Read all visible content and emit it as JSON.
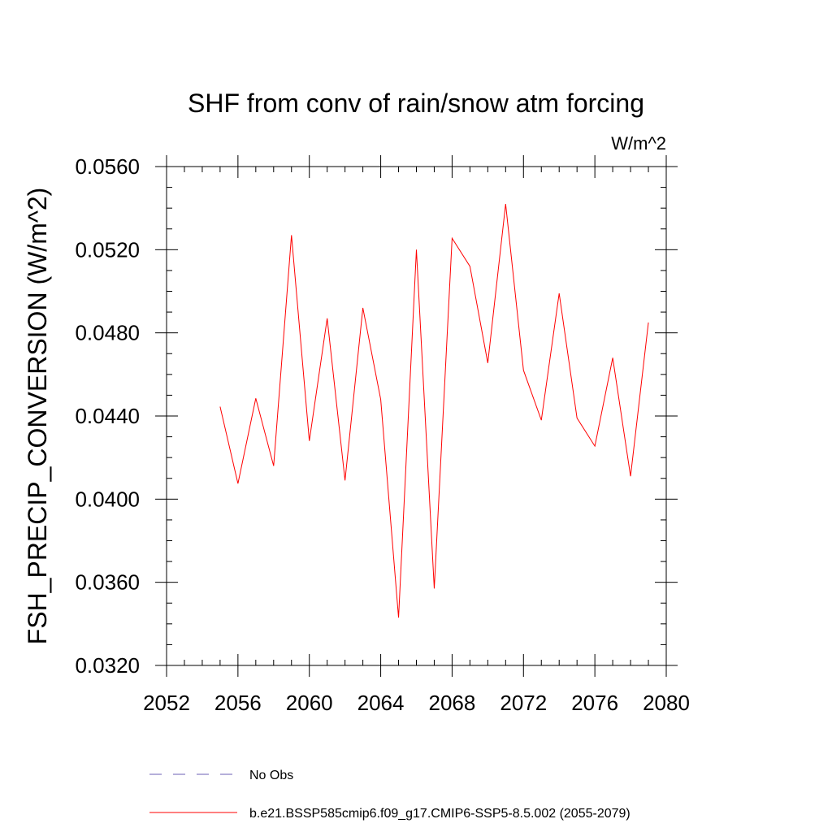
{
  "chart_data": {
    "type": "line",
    "title": "SHF from conv of rain/snow atm forcing",
    "units_label": "W/m^2",
    "ylabel": "FSH_PRECIP_CONVERSION  (W/m^2)",
    "xlabel": "",
    "xlim": [
      2052,
      2080
    ],
    "ylim": [
      0.032,
      0.056
    ],
    "x_ticks": [
      2052,
      2056,
      2060,
      2064,
      2068,
      2072,
      2076,
      2080
    ],
    "x_tick_labels": [
      "2052",
      "2056",
      "2060",
      "2064",
      "2068",
      "2072",
      "2076",
      "2080"
    ],
    "y_ticks": [
      0.032,
      0.036,
      0.04,
      0.044,
      0.048,
      0.052,
      0.056
    ],
    "y_tick_labels": [
      "0.0320",
      "0.0360",
      "0.0400",
      "0.0440",
      "0.0480",
      "0.0520",
      "0.0560"
    ],
    "grid": false,
    "legend_position": "bottom",
    "series": [
      {
        "name": "No Obs",
        "color": "#6b5fb5",
        "style": "dashed",
        "x": [],
        "values": []
      },
      {
        "name": "b.e21.BSSP585cmip6.f09_g17.CMIP6-SSP5-8.5.002 (2055-2079)",
        "color": "#ff0000",
        "style": "solid",
        "x": [
          2055,
          2056,
          2057,
          2058,
          2059,
          2060,
          2061,
          2062,
          2063,
          2064,
          2065,
          2066,
          2067,
          2068,
          2069,
          2070,
          2071,
          2072,
          2073,
          2074,
          2075,
          2076,
          2077,
          2078,
          2079
        ],
        "values": [
          0.04445,
          0.04075,
          0.04485,
          0.0416,
          0.0527,
          0.0428,
          0.0487,
          0.0409,
          0.0492,
          0.0448,
          0.0343,
          0.052,
          0.0357,
          0.05255,
          0.0512,
          0.04655,
          0.0542,
          0.0462,
          0.0438,
          0.0499,
          0.0439,
          0.04255,
          0.0468,
          0.0411,
          0.0485
        ]
      }
    ]
  }
}
